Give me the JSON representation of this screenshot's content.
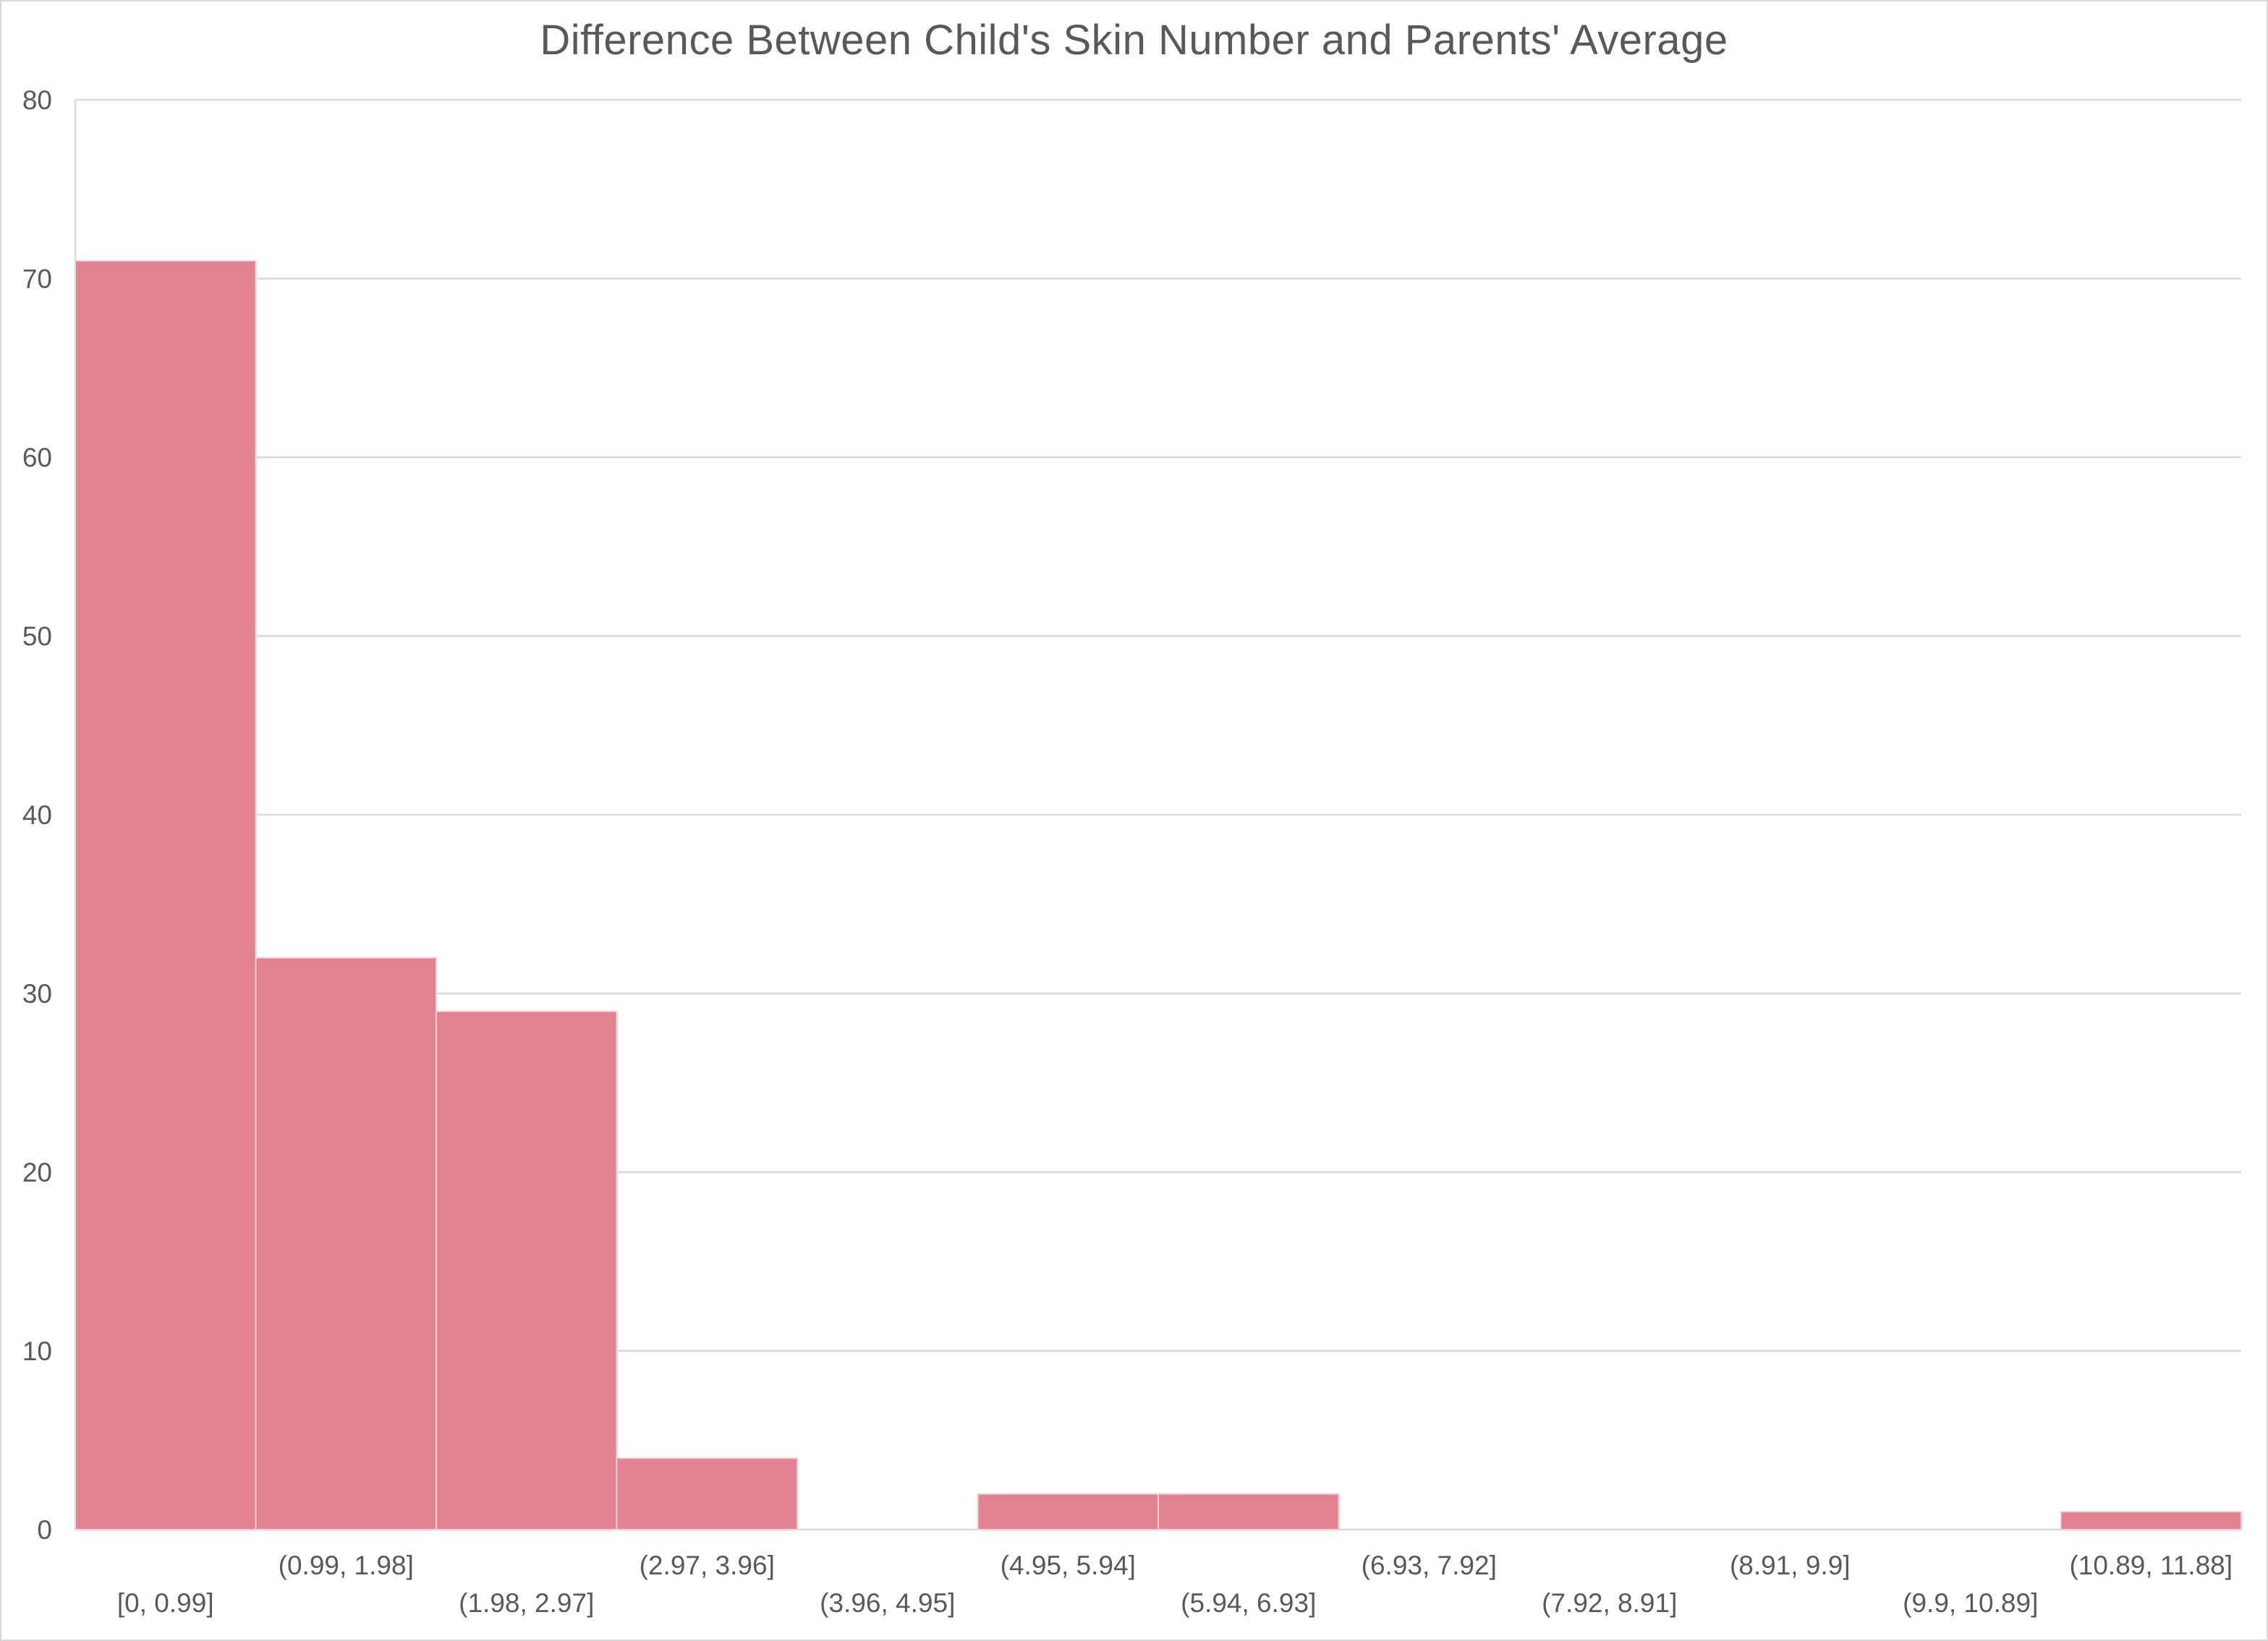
{
  "chart_data": {
    "type": "bar",
    "title": "Difference Between Child's Skin Number and Parents' Average",
    "xlabel": "",
    "ylabel": "",
    "ylim": [
      0,
      80
    ],
    "yticks": [
      0,
      10,
      20,
      30,
      40,
      50,
      60,
      70,
      80
    ],
    "grid": true,
    "categories": [
      "[0, 0.99]",
      "(0.99, 1.98]",
      "(1.98, 2.97]",
      "(2.97, 3.96]",
      "(3.96, 4.95]",
      "(4.95, 5.94]",
      "(5.94, 6.93]",
      "(6.93, 7.92]",
      "(7.92, 8.91]",
      "(8.91, 9.9]",
      "(9.9, 10.89]",
      "(10.89, 11.88]"
    ],
    "values": [
      71,
      32,
      29,
      4,
      0,
      2,
      2,
      0,
      0,
      0,
      0,
      1
    ],
    "colors": {
      "bar": "#e08290",
      "bar_edge": "#f4d3d8",
      "grid": "#d9d9d9",
      "text": "#595959"
    }
  }
}
